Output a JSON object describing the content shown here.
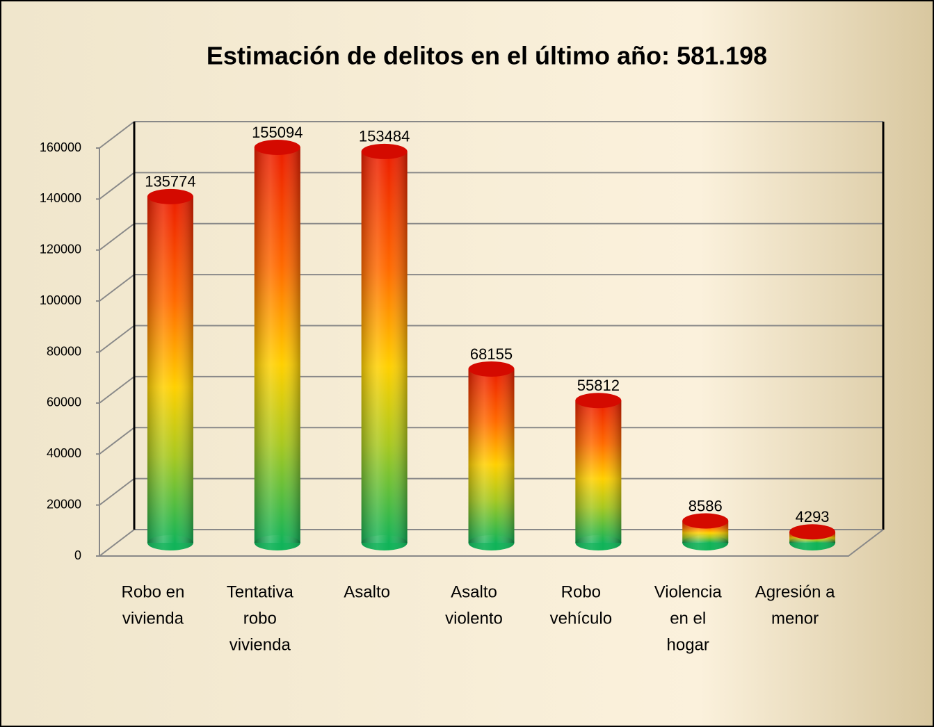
{
  "chart_data": {
    "type": "bar3d",
    "title": "Estimación de delitos en el último año: 581.198",
    "categories": [
      [
        "Robo en",
        "vivienda"
      ],
      [
        "Tentativa",
        "robo",
        "vivienda"
      ],
      [
        "Asalto"
      ],
      [
        "Asalto",
        "violento"
      ],
      [
        "Robo",
        "vehículo"
      ],
      [
        "Violencia",
        "en el",
        "hogar"
      ],
      [
        "Agresión a",
        "menor"
      ]
    ],
    "values": [
      135774,
      155094,
      153484,
      68155,
      55812,
      8586,
      4293
    ],
    "ylim": [
      0,
      160000
    ],
    "yticks": [
      0,
      20000,
      40000,
      60000,
      80000,
      100000,
      120000,
      140000,
      160000
    ],
    "grid": true
  }
}
